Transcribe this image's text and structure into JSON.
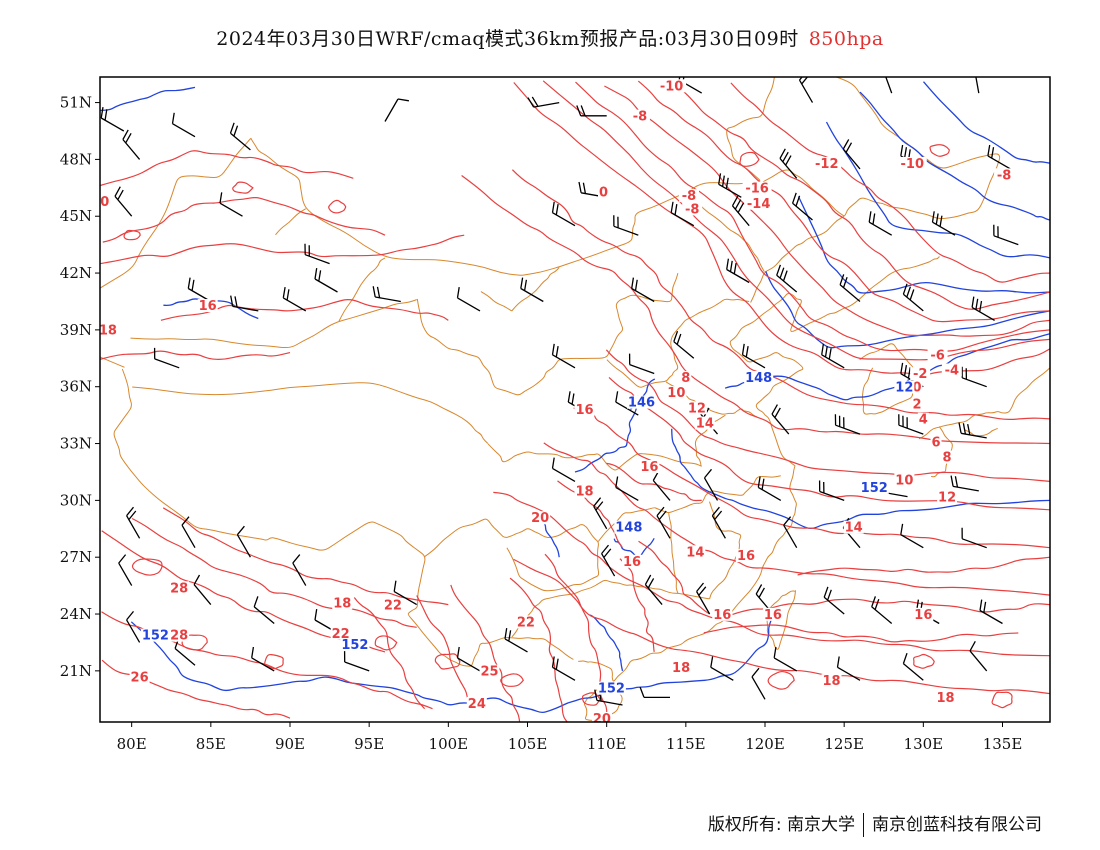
{
  "header": {
    "title": "2024年03月30日WRF/cmaq模式36km预报产品:03月30日09时",
    "level": "850hpa"
  },
  "axes": {
    "lon_labels": [
      "80E",
      "85E",
      "90E",
      "95E",
      "100E",
      "105E",
      "110E",
      "115E",
      "120E",
      "125E",
      "130E",
      "135E"
    ],
    "lat_labels": [
      "51N",
      "48N",
      "45N",
      "42N",
      "39N",
      "36N",
      "33N",
      "30N",
      "27N",
      "24N",
      "21N"
    ]
  },
  "colors": {
    "temperature": "#e84040",
    "geopotential": "#2244dd",
    "border": "#d8882e",
    "wind": "#000000"
  },
  "temperature_labels": [
    {
      "text": "-10",
      "lon": 114.1,
      "lat": 51.7
    },
    {
      "text": "-8",
      "lon": 112.1,
      "lat": 50.1
    },
    {
      "text": "-12",
      "lon": 123.9,
      "lat": 47.6
    },
    {
      "text": "-10",
      "lon": 129.3,
      "lat": 47.6
    },
    {
      "text": "-8",
      "lon": 135.1,
      "lat": 47.0
    },
    {
      "text": "-16",
      "lon": 119.5,
      "lat": 46.3
    },
    {
      "text": "-14",
      "lon": 119.6,
      "lat": 45.5
    },
    {
      "text": "0",
      "lon": 109.8,
      "lat": 46.1
    },
    {
      "text": "-8",
      "lon": 115.2,
      "lat": 45.9
    },
    {
      "text": "-8",
      "lon": 115.4,
      "lat": 45.2
    },
    {
      "text": "0",
      "lon": 78.3,
      "lat": 45.6
    },
    {
      "text": "16",
      "lon": 84.8,
      "lat": 40.1
    },
    {
      "text": "18",
      "lon": 78.5,
      "lat": 38.8
    },
    {
      "text": "-6",
      "lon": 130.9,
      "lat": 37.5
    },
    {
      "text": "-4",
      "lon": 131.8,
      "lat": 36.7
    },
    {
      "text": "-2",
      "lon": 129.8,
      "lat": 36.5
    },
    {
      "text": "0",
      "lon": 129.6,
      "lat": 35.8
    },
    {
      "text": "2",
      "lon": 129.6,
      "lat": 34.9
    },
    {
      "text": "4",
      "lon": 130.0,
      "lat": 34.1
    },
    {
      "text": "6",
      "lon": 130.8,
      "lat": 32.9
    },
    {
      "text": "8",
      "lon": 131.5,
      "lat": 32.1
    },
    {
      "text": "8",
      "lon": 115.0,
      "lat": 36.3
    },
    {
      "text": "10",
      "lon": 114.4,
      "lat": 35.5
    },
    {
      "text": "12",
      "lon": 115.7,
      "lat": 34.7
    },
    {
      "text": "14",
      "lon": 116.2,
      "lat": 33.9
    },
    {
      "text": "16",
      "lon": 108.6,
      "lat": 34.6
    },
    {
      "text": "16",
      "lon": 112.7,
      "lat": 31.6
    },
    {
      "text": "18",
      "lon": 108.6,
      "lat": 30.3
    },
    {
      "text": "20",
      "lon": 105.8,
      "lat": 28.9
    },
    {
      "text": "10",
      "lon": 128.8,
      "lat": 30.9
    },
    {
      "text": "12",
      "lon": 131.5,
      "lat": 30.0
    },
    {
      "text": "14",
      "lon": 125.6,
      "lat": 28.4
    },
    {
      "text": "14",
      "lon": 115.6,
      "lat": 27.1
    },
    {
      "text": "16",
      "lon": 118.8,
      "lat": 26.9
    },
    {
      "text": "16",
      "lon": 111.6,
      "lat": 26.6
    },
    {
      "text": "16",
      "lon": 117.3,
      "lat": 23.8
    },
    {
      "text": "16",
      "lon": 120.5,
      "lat": 23.8
    },
    {
      "text": "16",
      "lon": 130.0,
      "lat": 23.8
    },
    {
      "text": "18",
      "lon": 93.3,
      "lat": 24.4
    },
    {
      "text": "22",
      "lon": 96.5,
      "lat": 24.3
    },
    {
      "text": "28",
      "lon": 83.0,
      "lat": 25.2
    },
    {
      "text": "28",
      "lon": 83.0,
      "lat": 22.7
    },
    {
      "text": "22",
      "lon": 93.2,
      "lat": 22.8
    },
    {
      "text": "22",
      "lon": 104.9,
      "lat": 23.4
    },
    {
      "text": "26",
      "lon": 80.5,
      "lat": 20.5
    },
    {
      "text": "25",
      "lon": 102.6,
      "lat": 20.8
    },
    {
      "text": "24",
      "lon": 101.8,
      "lat": 19.1
    },
    {
      "text": "20",
      "lon": 109.7,
      "lat": 18.3
    },
    {
      "text": "18",
      "lon": 114.7,
      "lat": 21.0
    },
    {
      "text": "18",
      "lon": 124.2,
      "lat": 20.3
    },
    {
      "text": "18",
      "lon": 131.4,
      "lat": 19.4
    }
  ],
  "geopotential_labels": [
    {
      "text": "148",
      "lon": 119.6,
      "lat": 36.3
    },
    {
      "text": "12",
      "lon": 128.8,
      "lat": 35.8
    },
    {
      "text": "146",
      "lon": 112.2,
      "lat": 35.0
    },
    {
      "text": "148",
      "lon": 111.4,
      "lat": 28.4
    },
    {
      "text": "152",
      "lon": 126.9,
      "lat": 30.5
    },
    {
      "text": "152",
      "lon": 81.5,
      "lat": 22.7
    },
    {
      "text": "152",
      "lon": 94.1,
      "lat": 22.2
    },
    {
      "text": "152",
      "lon": 110.3,
      "lat": 19.9
    }
  ],
  "footer": {
    "owner": "版权所有: 南京大学",
    "company": "南京创蓝科技有限公司"
  }
}
